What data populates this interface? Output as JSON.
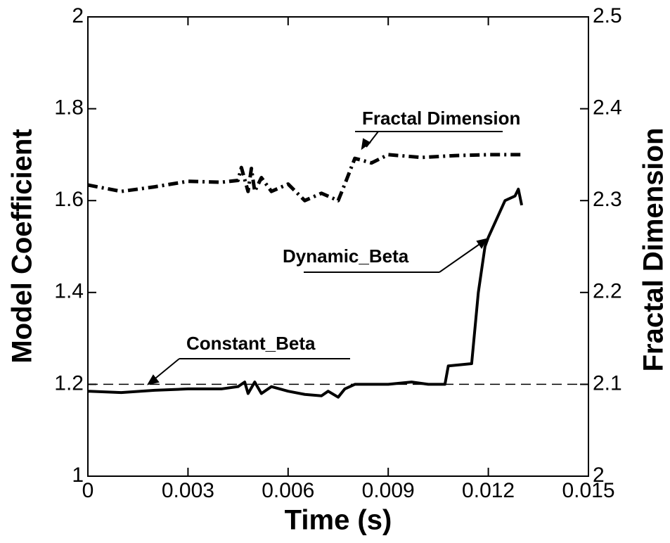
{
  "chart_data": {
    "type": "line",
    "xlabel": "Time (s)",
    "ylabel": "Model Coefficient",
    "y2label": "Fractal Dimension",
    "xlim": [
      0,
      0.015
    ],
    "xticks": [
      0,
      0.003,
      0.006,
      0.009,
      0.012,
      0.015
    ],
    "ylim": [
      1,
      2
    ],
    "yticks": [
      1,
      1.2,
      1.4,
      1.6,
      1.8,
      2
    ],
    "y2lim": [
      2,
      2.5
    ],
    "y2ticks": [
      2,
      2.1,
      2.2,
      2.3,
      2.4,
      2.5
    ],
    "series": [
      {
        "name": "Dynamic_Beta",
        "color": "#000000",
        "linestyle": "solid",
        "x": [
          0,
          0.001,
          0.002,
          0.003,
          0.004,
          0.0045,
          0.0047,
          0.0048,
          0.005,
          0.0052,
          0.0055,
          0.006,
          0.0065,
          0.007,
          0.0072,
          0.0075,
          0.0077,
          0.008,
          0.009,
          0.0097,
          0.0102,
          0.0107,
          0.0108,
          0.0115,
          0.0117,
          0.0119,
          0.012,
          0.0125,
          0.0128,
          0.0129,
          0.013
        ],
        "values": [
          1.185,
          1.182,
          1.187,
          1.19,
          1.19,
          1.195,
          1.205,
          1.18,
          1.205,
          1.18,
          1.195,
          1.185,
          1.178,
          1.175,
          1.185,
          1.172,
          1.19,
          1.2,
          1.2,
          1.205,
          1.2,
          1.2,
          1.24,
          1.245,
          1.4,
          1.5,
          1.52,
          1.6,
          1.61,
          1.625,
          1.59
        ]
      },
      {
        "name": "Constant_Beta",
        "color": "#000000",
        "linestyle": "dashed",
        "x": [
          0,
          0.015
        ],
        "values": [
          1.2,
          1.2
        ]
      },
      {
        "name": "Fractal Dimension",
        "color": "#000000",
        "linestyle": "dashdot",
        "axis": "y2",
        "x": [
          0,
          0.001,
          0.002,
          0.003,
          0.004,
          0.0045,
          0.0046,
          0.0048,
          0.0049,
          0.005,
          0.0052,
          0.0055,
          0.006,
          0.0065,
          0.007,
          0.0075,
          0.0077,
          0.008,
          0.0085,
          0.009,
          0.01,
          0.011,
          0.012,
          0.013
        ],
        "values": [
          2.317,
          2.31,
          2.315,
          2.321,
          2.32,
          2.322,
          2.336,
          2.31,
          2.335,
          2.31,
          2.325,
          2.31,
          2.318,
          2.3,
          2.308,
          2.3,
          2.318,
          2.346,
          2.341,
          2.35,
          2.347,
          2.349,
          2.35,
          2.35
        ]
      }
    ]
  }
}
